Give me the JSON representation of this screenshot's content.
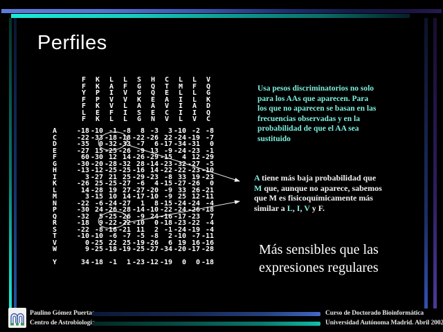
{
  "slide": {
    "title": "Perfiles"
  },
  "colors": {
    "accent_cyan": "#7CF0DF",
    "text_white": "#F0F0F0",
    "top_bar_blue": "#5B7AD8",
    "top_bar_teal": "#1FE9D6"
  },
  "profile_matrix": {
    "alignment_rows": [
      "FKLLSHCLLV",
      "FKAFGQTMFQ",
      "YPIVGQELLG",
      "FPVVKEAILK",
      "FKVLAAVIAD",
      "LEFISECIIQ",
      "FKLLGNVLVC"
    ],
    "score_rows": [
      {
        "label": "A",
        "values": [
          -18,
          -10,
          -1,
          -8,
          8,
          -3,
          3,
          -10,
          -2,
          -8
        ]
      },
      {
        "label": "C",
        "values": [
          -22,
          -33,
          -18,
          -18,
          -22,
          -26,
          22,
          -24,
          -19,
          -7
        ]
      },
      {
        "label": "D",
        "values": [
          -35,
          0,
          -32,
          -33,
          -7,
          6,
          -17,
          -34,
          -31,
          0
        ]
      },
      {
        "label": "E",
        "values": [
          -27,
          15,
          -25,
          -26,
          -9,
          13,
          -9,
          -24,
          -23,
          -1
        ]
      },
      {
        "label": "F",
        "values": [
          60,
          -30,
          12,
          14,
          -26,
          -29,
          -15,
          4,
          12,
          -29
        ]
      },
      {
        "label": "G",
        "values": [
          -30,
          -20,
          -28,
          -32,
          28,
          -14,
          -23,
          -32,
          -27,
          -5
        ]
      },
      {
        "label": "H",
        "values": [
          -13,
          -12,
          -25,
          -25,
          -16,
          14,
          -22,
          -22,
          -23,
          -10
        ]
      },
      {
        "label": "I",
        "values": [
          3,
          -27,
          21,
          25,
          -29,
          -23,
          -8,
          33,
          19,
          -23
        ]
      },
      {
        "label": "K",
        "values": [
          -26,
          25,
          -25,
          -27,
          -6,
          4,
          -15,
          -27,
          -26,
          0
        ]
      },
      {
        "label": "L",
        "values": [
          14,
          -28,
          19,
          27,
          -27,
          -20,
          -9,
          33,
          26,
          -21
        ]
      },
      {
        "label": "M",
        "values": [
          3,
          -15,
          10,
          14,
          -17,
          -10,
          -9,
          25,
          12,
          -11
        ]
      },
      {
        "label": "N",
        "values": [
          -22,
          -6,
          -24,
          -27,
          1,
          8,
          -15,
          -24,
          -24,
          -4
        ]
      },
      {
        "label": "P",
        "values": [
          -30,
          24,
          -26,
          -28,
          -14,
          -10,
          -22,
          -24,
          -26,
          -18
        ]
      },
      {
        "label": "Q",
        "values": [
          -32,
          5,
          -25,
          -26,
          -9,
          24,
          -16,
          -17,
          -23,
          7
        ]
      },
      {
        "label": "R",
        "values": [
          -18,
          9,
          -22,
          -22,
          -10,
          0,
          -18,
          -23,
          -22,
          -4
        ]
      },
      {
        "label": "S",
        "values": [
          -22,
          -8,
          -16,
          -21,
          11,
          2,
          -1,
          -24,
          -19,
          -4
        ]
      },
      {
        "label": "T",
        "values": [
          -10,
          -10,
          -6,
          -7,
          -5,
          -8,
          2,
          -10,
          -7,
          -11
        ]
      },
      {
        "label": "V",
        "values": [
          0,
          -25,
          22,
          25,
          -19,
          -26,
          6,
          19,
          16,
          -16
        ]
      },
      {
        "label": "W",
        "values": [
          9,
          -25,
          -18,
          -19,
          -25,
          -27,
          -34,
          -20,
          -17,
          -28
        ]
      },
      {
        "label": "Y",
        "gap_before": true,
        "values": [
          34,
          -18,
          -1,
          1,
          -23,
          -12,
          -19,
          0,
          0,
          -18
        ]
      }
    ]
  },
  "notes": {
    "discriminative": {
      "lines": [
        "Usa pesos discriminatorios no solo",
        "para los AAs que aparecen. Para",
        "los que no aparecen se basan en las",
        "frecuencias observadas y en la",
        "probabilidad de que el AA sea",
        "sustituido"
      ]
    },
    "comparison": {
      "lines": [
        [
          {
            "text": "A",
            "highlight": true
          },
          {
            "text": " tiene más baja probabilidad que"
          }
        ],
        [
          {
            "text": "M",
            "highlight": true
          },
          {
            "text": " que, aunque no aparece, sabemos"
          }
        ],
        [
          {
            "text": "que M es fisicoquímicamente más"
          }
        ],
        [
          {
            "text": "similar a "
          },
          {
            "text": "L",
            "highlight": true
          },
          {
            "text": ", "
          },
          {
            "text": "I",
            "highlight": true
          },
          {
            "text": ", "
          },
          {
            "text": "V",
            "highlight": true
          },
          {
            "text": " y F."
          }
        ]
      ]
    },
    "emphasis": {
      "lines": [
        "Más sensibles que las",
        "expresiones regulares"
      ]
    }
  },
  "footer": {
    "author": "Paulino Gómez Puertas",
    "institution": "Centro de Astrobiología",
    "course": "Curso de Doctorado Bioinformática",
    "university": "Universidad Autónoma Madrid. Abril 2002."
  }
}
